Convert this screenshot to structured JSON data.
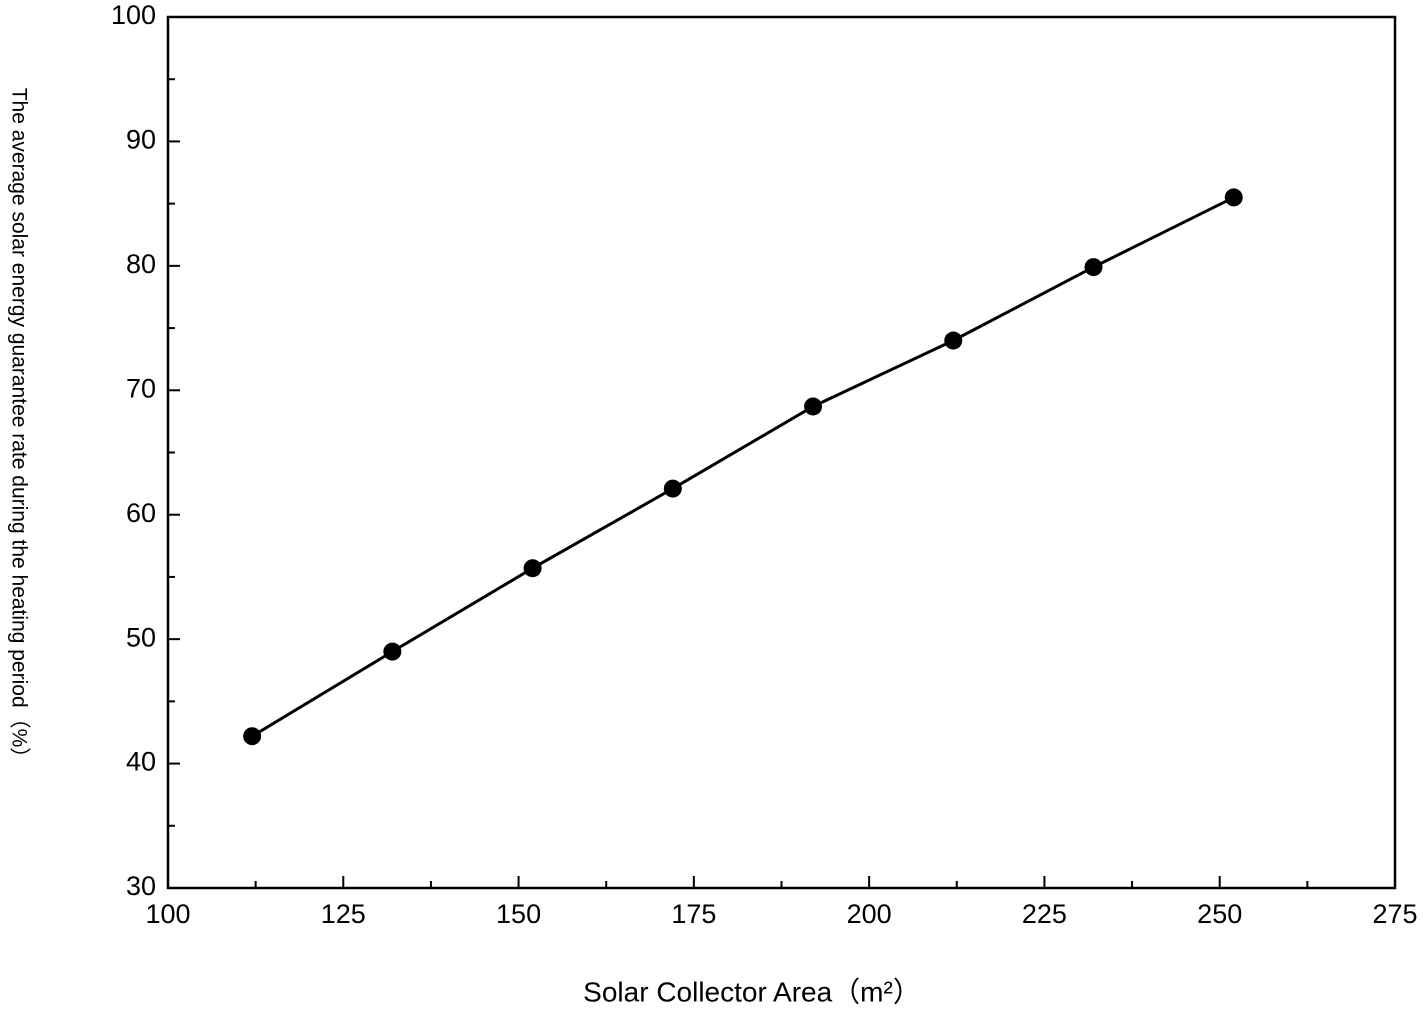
{
  "chart_data": {
    "type": "line",
    "xlabel": "Solar Collector Area（m²）",
    "ylabel": "The average solar energy guarantee rate during the heating period（%）",
    "x": [
      112,
      132,
      152,
      172,
      192,
      212,
      232,
      252
    ],
    "series": [
      {
        "color": "#000000",
        "values": [
          42.2,
          49.0,
          55.7,
          62.1,
          68.7,
          74.0,
          79.9,
          85.5
        ]
      }
    ],
    "xlim": [
      100,
      275
    ],
    "xticks": [
      100,
      125,
      150,
      175,
      200,
      225,
      250,
      275
    ],
    "xminorticks": [
      112.5,
      137.5,
      162.5,
      187.5,
      212.5,
      237.5,
      262.5
    ],
    "ylim": [
      30,
      100
    ],
    "yticks": [
      30,
      40,
      50,
      60,
      70,
      80,
      90,
      100
    ],
    "yminorticks": [
      35,
      45,
      55,
      65,
      75,
      85,
      95
    ],
    "grid": false
  }
}
